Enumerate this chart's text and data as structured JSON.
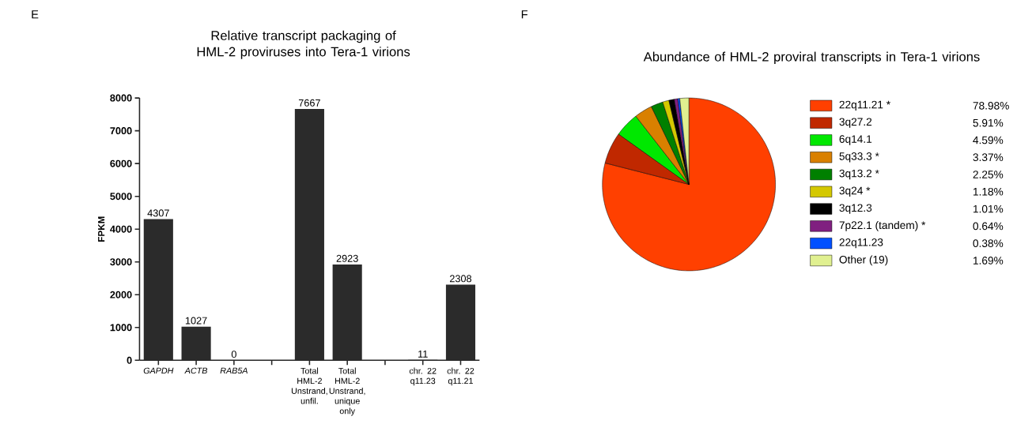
{
  "chart_data": [
    {
      "type": "bar",
      "title": "Relative transcript packaging of HML-2 proviruses into Tera-1 virions",
      "ylabel": "FPKM",
      "categories": [
        "*GAPDH*",
        "*ACTB*",
        "*RAB5A*",
        null,
        "Total HML-2 Unstrand, unfil.",
        "Total HML-2 Unstrand, unique only",
        null,
        "chr. 22 q11.23",
        "chr. 22 q11.21"
      ],
      "values": [
        4307,
        1027,
        0,
        null,
        7667,
        2923,
        null,
        11,
        2308
      ],
      "color": "#2b2b2b",
      "ylim": [
        0,
        8000
      ],
      "yticks": [
        0,
        1000,
        2000,
        3000,
        4000,
        5000,
        6000,
        7000,
        8000
      ],
      "data_labels": true,
      "annotations": [
        "E"
      ]
    },
    {
      "type": "pie",
      "title": "Abundance of HML-2 proviral transcripts in Tera-1 virions",
      "categories": [
        "22q11.21 *",
        "3q27.2",
        "6q14.1",
        "5q33.3 *",
        "3q13.2 *",
        "3q24 *",
        "3q12.3",
        "7p22.1 (tandem) *",
        "22q11.23",
        "Other (19)"
      ],
      "values": [
        78.98,
        5.91,
        4.59,
        3.37,
        2.25,
        1.18,
        1.01,
        0.64,
        0.38,
        1.69
      ],
      "value_labels": [
        "78.98%",
        "5.91%",
        "4.59%",
        "3.37%",
        "2.25%",
        "1.18%",
        "1.01%",
        "0.64%",
        "0.38%",
        "1.69%"
      ],
      "colors": [
        "#ff4000",
        "#c02800",
        "#00e800",
        "#d98000",
        "#008000",
        "#d4c800",
        "#000000",
        "#802080",
        "#0050ff",
        "#e0f090"
      ],
      "legend": "right",
      "annotations": [
        "F"
      ]
    }
  ]
}
